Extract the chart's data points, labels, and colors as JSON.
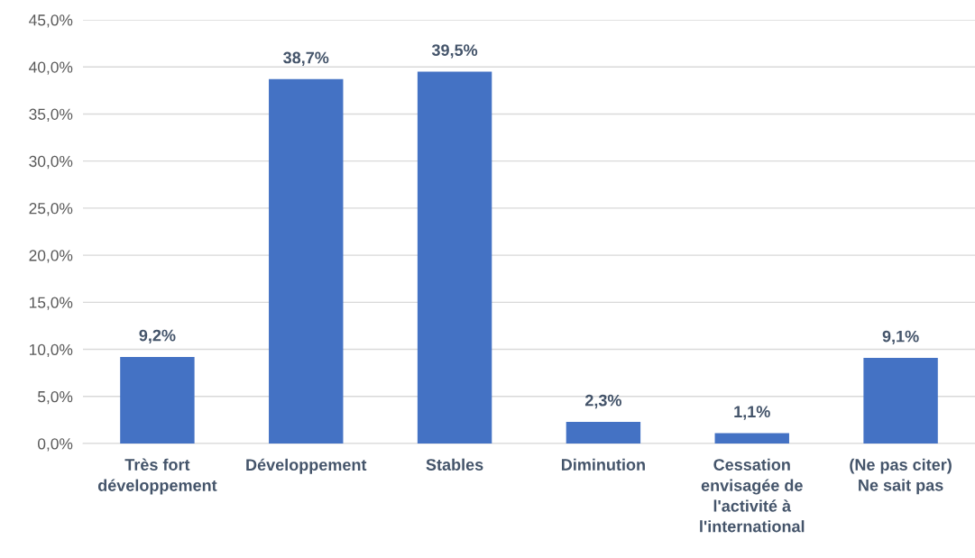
{
  "chart_data": {
    "type": "bar",
    "categories": [
      "Très fort\ndéveloppement",
      "Développement",
      "Stables",
      "Diminution",
      "Cessation\nenvisagée de\nl'activité à\nl'international",
      "(Ne pas citer)\nNe sait pas"
    ],
    "values": [
      9.2,
      38.7,
      39.5,
      2.3,
      1.1,
      9.1
    ],
    "value_labels": [
      "9,2%",
      "38,7%",
      "39,5%",
      "2,3%",
      "1,1%",
      "9,1%"
    ],
    "color": "#4472c4",
    "ylim": [
      0,
      45
    ],
    "yticks": [
      {
        "value": 0,
        "label": "0,0%"
      },
      {
        "value": 5,
        "label": "5,0%"
      },
      {
        "value": 10,
        "label": "10,0%"
      },
      {
        "value": 15,
        "label": "15,0%"
      },
      {
        "value": 20,
        "label": "20,0%"
      },
      {
        "value": 25,
        "label": "25,0%"
      },
      {
        "value": 30,
        "label": "30,0%"
      },
      {
        "value": 35,
        "label": "35,0%"
      },
      {
        "value": 40,
        "label": "40,0%"
      },
      {
        "value": 45,
        "label": "45,0%"
      }
    ],
    "grid": "y"
  }
}
